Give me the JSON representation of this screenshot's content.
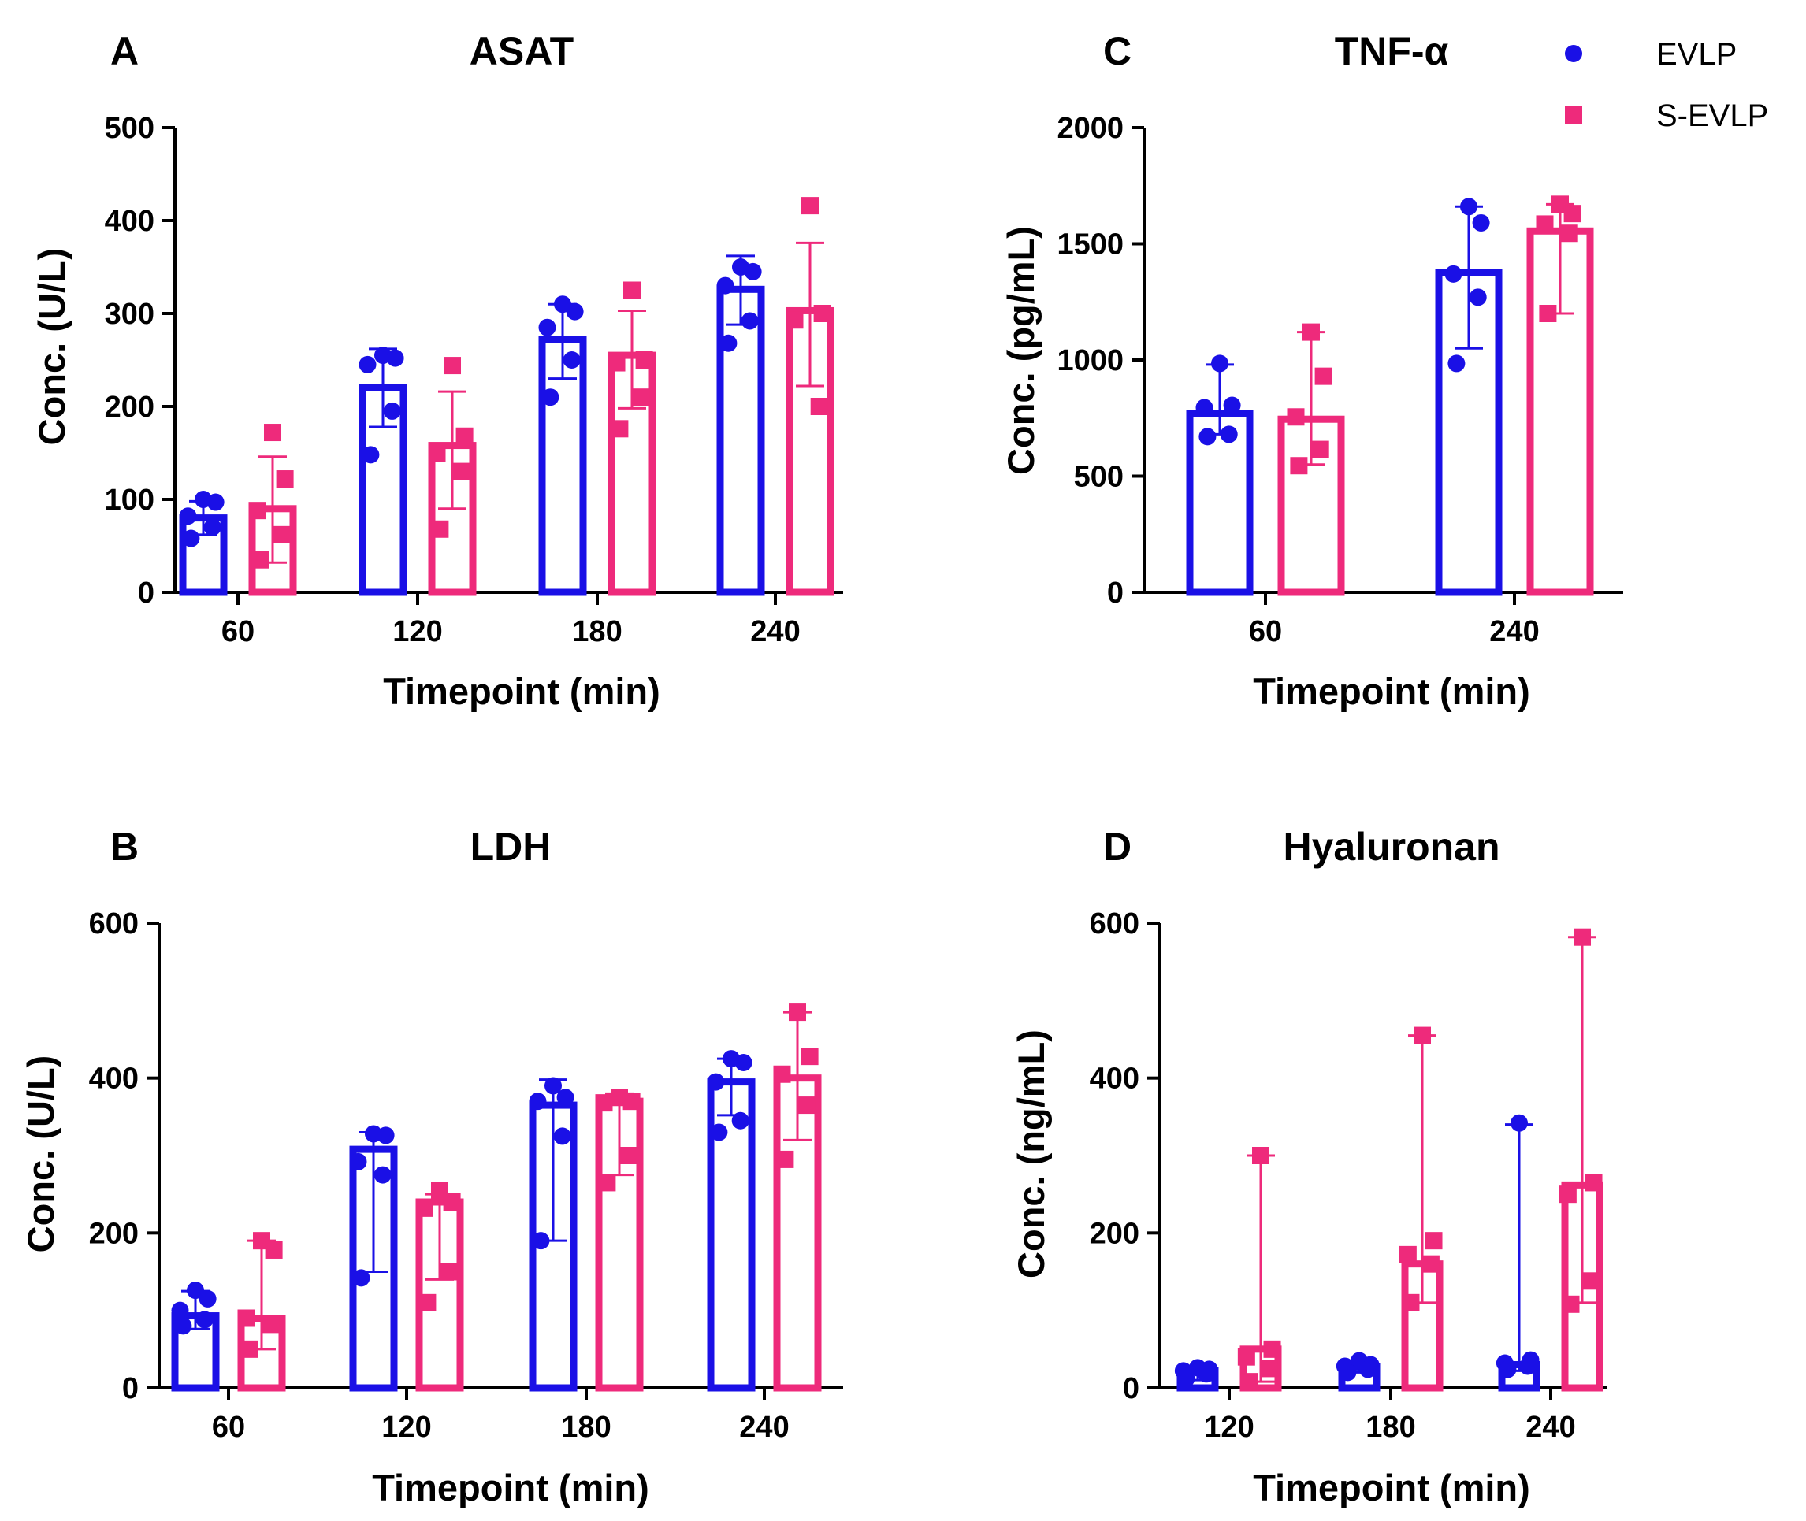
{
  "legend": {
    "entries": [
      {
        "name": "EVLP",
        "color": "#1a10e6",
        "marker": "circle"
      },
      {
        "name": "S-EVLP",
        "color": "#ee2a7b",
        "marker": "square"
      }
    ]
  },
  "chart_data": [
    {
      "id": "A",
      "letter": "A",
      "type": "bar",
      "title": "ASAT",
      "xlabel": "Timepoint (min)",
      "ylabel": "Conc. (U/L)",
      "ylim": [
        0,
        500
      ],
      "yticks": [
        "0",
        "100",
        "200",
        "300",
        "400",
        "500"
      ],
      "categories": [
        "60",
        "120",
        "180",
        "240"
      ],
      "series": [
        {
          "name": "EVLP",
          "color": "#1a10e6",
          "marker": "circle",
          "values": [
            80,
            220,
            272,
            326
          ],
          "err_low": [
            62,
            178,
            230,
            288
          ],
          "err_high": [
            98,
            262,
            310,
            362
          ],
          "points": [
            [
              100,
              97,
              82,
              70,
              58
            ],
            [
              255,
              252,
              245,
              195,
              148
            ],
            [
              310,
              302,
              285,
              250,
              210
            ],
            [
              350,
              345,
              330,
              292,
              268
            ]
          ]
        },
        {
          "name": "S-EVLP",
          "color": "#ee2a7b",
          "marker": "square",
          "values": [
            90,
            158,
            255,
            303
          ],
          "err_low": [
            32,
            90,
            198,
            222
          ],
          "err_high": [
            146,
            216,
            303,
            376
          ],
          "points": [
            [
              172,
              122,
              88,
              62,
              35
            ],
            [
              244,
              168,
              150,
              130,
              68
            ],
            [
              325,
              250,
              247,
              210,
              176
            ],
            [
              416,
              300,
              293,
              200
            ]
          ]
        }
      ]
    },
    {
      "id": "B",
      "letter": "B",
      "type": "bar",
      "title": "LDH",
      "xlabel": "Timepoint (min)",
      "ylabel": "Conc. (U/L)",
      "ylim": [
        0,
        600
      ],
      "yticks": [
        "0",
        "200",
        "400",
        "600"
      ],
      "categories": [
        "60",
        "120",
        "180",
        "240"
      ],
      "series": [
        {
          "name": "EVLP",
          "color": "#1a10e6",
          "marker": "circle",
          "values": [
            93,
            308,
            365,
            395
          ],
          "err_low": [
            76,
            150,
            190,
            352
          ],
          "err_high": [
            125,
            330,
            398,
            425
          ],
          "points": [
            [
              126,
              115,
              100,
              88,
              80
            ],
            [
              328,
              326,
              292,
              275,
              142
            ],
            [
              390,
              375,
              370,
              325,
              190
            ],
            [
              425,
              420,
              395,
              345,
              330
            ]
          ]
        },
        {
          "name": "S-EVLP",
          "color": "#ee2a7b",
          "marker": "square",
          "values": [
            90,
            240,
            370,
            400
          ],
          "err_low": [
            50,
            140,
            275,
            320
          ],
          "err_high": [
            190,
            250,
            380,
            485
          ],
          "points": [
            [
              190,
              178,
              90,
              82,
              50
            ],
            [
              255,
              240,
              232,
              150,
              110
            ],
            [
              375,
              370,
              368,
              300,
              265
            ],
            [
              485,
              428,
              405,
              365,
              295
            ]
          ]
        }
      ]
    },
    {
      "id": "C",
      "letter": "C",
      "type": "bar",
      "title": "TNF-α",
      "xlabel": "Timepoint (min)",
      "ylabel": "Conc. (pg/mL)",
      "ylim": [
        0,
        2000
      ],
      "yticks": [
        "0",
        "500",
        "1000",
        "1500",
        "2000"
      ],
      "categories": [
        "60",
        "240"
      ],
      "series": [
        {
          "name": "EVLP",
          "color": "#1a10e6",
          "marker": "circle",
          "values": [
            770,
            1375
          ],
          "err_low": [
            680,
            1050
          ],
          "err_high": [
            980,
            1660
          ],
          "points": [
            [
              985,
              805,
              795,
              680,
              670
            ],
            [
              1660,
              1590,
              1370,
              1270,
              985
            ]
          ]
        },
        {
          "name": "S-EVLP",
          "color": "#ee2a7b",
          "marker": "square",
          "values": [
            745,
            1555
          ],
          "err_low": [
            550,
            1200
          ],
          "err_high": [
            1120,
            1670
          ],
          "points": [
            [
              1120,
              930,
              755,
              615,
              545
            ],
            [
              1670,
              1630,
              1585,
              1545,
              1200
            ]
          ]
        }
      ]
    },
    {
      "id": "D",
      "letter": "D",
      "type": "bar",
      "title": "Hyaluronan",
      "xlabel": "Timepoint (min)",
      "ylabel": "Conc. (ng/mL)",
      "ylim": [
        0,
        600
      ],
      "yticks": [
        "0",
        "200",
        "400",
        "600"
      ],
      "categories": [
        "120",
        "180",
        "240"
      ],
      "series": [
        {
          "name": "EVLP",
          "color": "#1a10e6",
          "marker": "circle",
          "values": [
            22,
            27,
            30
          ],
          "err_low": [
            10,
            20,
            22
          ],
          "err_high": [
            28,
            35,
            340
          ],
          "points": [
            [
              26,
              24,
              22,
              18,
              12
            ],
            [
              35,
              30,
              28,
              24,
              20
            ],
            [
              342,
              36,
              32,
              28,
              24
            ]
          ]
        },
        {
          "name": "S-EVLP",
          "color": "#ee2a7b",
          "marker": "square",
          "values": [
            50,
            160,
            262
          ],
          "err_low": [
            8,
            110,
            110
          ],
          "err_high": [
            300,
            455,
            582
          ],
          "points": [
            [
              300,
              50,
              40,
              25,
              8
            ],
            [
              455,
              190,
              172,
              160,
              110
            ],
            [
              582,
              265,
              250,
              138,
              108
            ]
          ]
        }
      ]
    }
  ]
}
